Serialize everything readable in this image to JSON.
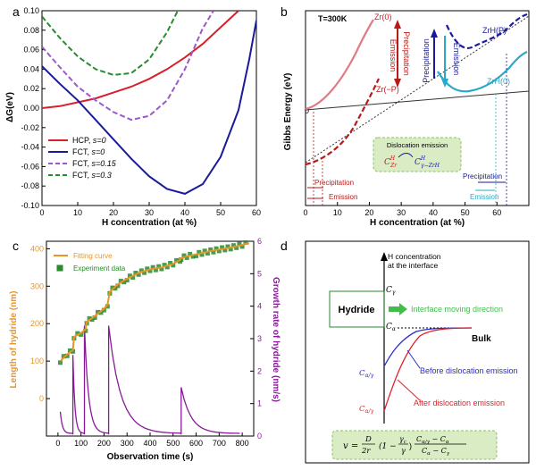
{
  "chart_data": [
    {
      "panel": "a",
      "type": "line",
      "xlabel": "H concentration (at %)",
      "ylabel": "ΔG(eV)",
      "xlim": [
        0,
        60
      ],
      "ylim": [
        -0.1,
        0.1
      ],
      "xticks": [
        "0",
        "10",
        "20",
        "30",
        "40",
        "50",
        "60"
      ],
      "yticks": [
        "0.10",
        "0.08",
        "0.06",
        "0.04",
        "0.02",
        "0.00",
        "-0.02",
        "-0.04",
        "-0.06",
        "-0.08",
        "-0.10"
      ],
      "series": [
        {
          "name": "HCP, s=0",
          "color": "#d6202a",
          "dash": "solid",
          "x": [
            0,
            5,
            10,
            15,
            20,
            25,
            30,
            35,
            40,
            45,
            50,
            55
          ],
          "y": [
            0.0,
            0.002,
            0.006,
            0.01,
            0.016,
            0.022,
            0.03,
            0.04,
            0.052,
            0.066,
            0.083,
            0.1
          ]
        },
        {
          "name": "FCT, s=0",
          "color": "#1a1a9c",
          "dash": "solid",
          "x": [
            0,
            5,
            10,
            15,
            20,
            25,
            30,
            35,
            40,
            45,
            50,
            55,
            58,
            60
          ],
          "y": [
            0.043,
            0.025,
            0.008,
            -0.012,
            -0.032,
            -0.052,
            -0.07,
            -0.083,
            -0.088,
            -0.078,
            -0.05,
            -0.002,
            0.05,
            0.09
          ]
        },
        {
          "name": "FCT, s=0.15",
          "color": "#9b59c9",
          "dash": "dashed",
          "x": [
            0,
            5,
            10,
            15,
            20,
            25,
            30,
            35,
            40,
            45,
            48
          ],
          "y": [
            0.063,
            0.042,
            0.022,
            0.008,
            -0.004,
            -0.012,
            -0.008,
            0.008,
            0.04,
            0.082,
            0.1
          ]
        },
        {
          "name": "FCT, s=0.3",
          "color": "#2a8a2e",
          "dash": "dashed",
          "x": [
            0,
            5,
            10,
            15,
            20,
            25,
            30,
            35,
            38
          ],
          "y": [
            0.094,
            0.072,
            0.053,
            0.04,
            0.034,
            0.036,
            0.05,
            0.078,
            0.1
          ]
        }
      ],
      "legend_labels": [
        "HCP, ",
        "FCT, ",
        "FCT, ",
        "FCT, "
      ],
      "legend_s": [
        "s=0",
        "s=0",
        "s=0.15",
        "s=0.3"
      ]
    },
    {
      "panel": "b",
      "type": "line",
      "xlabel": "H concentration (at %)",
      "ylabel": "Gibbs Energy (eV)",
      "xlim": [
        0,
        70
      ],
      "xticks": [
        "0",
        "10",
        "20",
        "30",
        "40",
        "50",
        "60"
      ],
      "zero_label": "0",
      "temperature": "T=300K",
      "curves": {
        "zr0": "Zr(0)",
        "zrmp": "Zr(−P)",
        "zrhp": "ZrH(P)",
        "zrh0": "ZrH(0)"
      },
      "arrows": {
        "precipitation_zr": "Precipitation",
        "emission_zr": "Emission",
        "precipitation_zrh": "Precipitation",
        "emission_zrh": "Emission"
      },
      "box": {
        "title": "Dislocation emission",
        "c1": "C",
        "c1_sup": "H",
        "c1_sub": "Zr",
        "c2": "C",
        "c2_sup": "H",
        "c2_sub": "γ−ZrH"
      },
      "bottom_left": {
        "precipitation": "Precipitation",
        "emission": "Emission"
      },
      "bottom_right": {
        "precipitation": "Precipitation",
        "emission": "Emission"
      }
    },
    {
      "panel": "c",
      "type": "line",
      "xlabel": "Observation time (s)",
      "ylabel_left": "Length of hydride (nm)",
      "ylabel_right": "Growth rate of hydride (nm/s)",
      "xlim": [
        -50,
        850
      ],
      "ylim_left": [
        -100,
        420
      ],
      "ylim_right": [
        0,
        6
      ],
      "xticks": [
        "0",
        "100",
        "200",
        "300",
        "400",
        "500",
        "600",
        "700",
        "800"
      ],
      "yticks_left": [
        "0",
        "100",
        "200",
        "300",
        "400"
      ],
      "yticks_right": [
        "0",
        "1",
        "2",
        "3",
        "4",
        "5",
        "6"
      ],
      "legend": [
        "Fitting curve",
        "Experiment data"
      ],
      "fit": {
        "color": "#e8962a",
        "x": [
          10,
          40,
          65,
          70,
          100,
          120,
          125,
          160,
          200,
          215,
          225,
          260,
          300,
          350,
          400,
          450,
          500,
          530,
          535,
          560,
          600,
          650,
          700,
          750,
          800,
          830
        ],
        "y": [
          100,
          118,
          130,
          165,
          175,
          185,
          205,
          220,
          240,
          250,
          285,
          305,
          320,
          335,
          345,
          350,
          360,
          370,
          375,
          380,
          385,
          392,
          398,
          403,
          410,
          415
        ]
      },
      "growth_rate": {
        "color": "#8a1a9a",
        "spikes": [
          [
            65,
            2.5
          ],
          [
            115,
            3.4
          ],
          [
            220,
            3.4
          ],
          [
            535,
            1.5
          ]
        ],
        "baseline_start": 0.75,
        "end_value": 0.08
      }
    },
    {
      "panel": "d",
      "type": "diagram",
      "yaxis_title_1": "H concentration",
      "yaxis_title_2": "at the interface",
      "c_gamma": "C",
      "c_gamma_sub": "γ",
      "c_alpha": "C",
      "c_alpha_sub": "α",
      "c_ag": "C",
      "c_ag_sub": "α/γ",
      "c_ag_prime_sub": "α/γ",
      "hydride": "Hydride",
      "interface_dir": "Interface moving direction",
      "bulk": "Bulk",
      "before": "Before dislocation emission",
      "after": "After dislocation emission",
      "formula": {
        "v": "v =",
        "D": "D",
        "den": "2r",
        "fac": "(1 −",
        "gc": "γ",
        "gc_sub": "c",
        "g": "γ",
        "rest_num": "C",
        "rest_den": "C"
      }
    }
  ],
  "panel_letters": [
    "a",
    "b",
    "c",
    "d"
  ],
  "colors": {
    "red": "#d6202a",
    "navy": "#1a1a9c",
    "purple": "#9b59c9",
    "green": "#2a8a2e",
    "orange": "#e8962a",
    "magenta": "#8a1a9a",
    "cyan": "#2aa8c9",
    "darkred": "#b81a1a"
  }
}
